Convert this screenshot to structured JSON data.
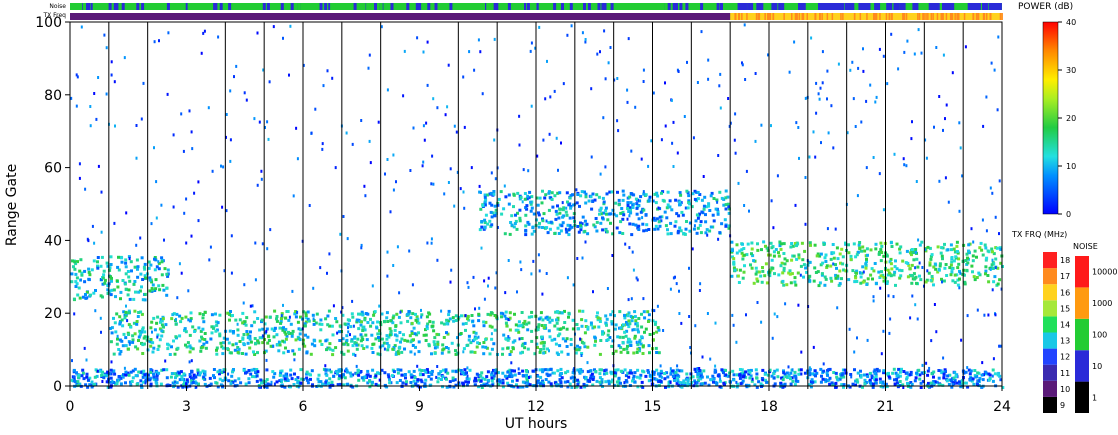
{
  "chart_data": {
    "type": "heatmap",
    "ylabel": "Range Gate",
    "xlabel": "UT hours",
    "xlim": [
      0,
      24
    ],
    "ylim": [
      0,
      100
    ],
    "x_ticks": [
      0,
      3,
      6,
      9,
      12,
      15,
      18,
      21,
      24
    ],
    "y_ticks": [
      0,
      20,
      40,
      60,
      80,
      100
    ],
    "scan_boundaries_ut": [
      1,
      2,
      4,
      5,
      6,
      7,
      8,
      10,
      11,
      12,
      13,
      14,
      15,
      16,
      17,
      18,
      19,
      20,
      21,
      22,
      23,
      24
    ],
    "header_bars": {
      "noise_label": "Noise",
      "txfreq_label": "TX Freq",
      "txfreq_switch_ut": 17.0
    },
    "power_colorbar": {
      "label": "POWER (dB)",
      "ticks": [
        0,
        10,
        20,
        30,
        40
      ],
      "range": [
        0,
        40
      ]
    },
    "txfreq_colorbar": {
      "label": "TX FRQ (MHz)",
      "levels": [
        9,
        10,
        11,
        12,
        13,
        14,
        15,
        16,
        17,
        18
      ],
      "colors": [
        "#000000",
        "#5a1a78",
        "#3a2ab0",
        "#2244ff",
        "#19c8e6",
        "#1fe05a",
        "#a6e83a",
        "#ffd21e",
        "#ff8a1e",
        "#ff2020"
      ]
    },
    "noise_colorbar": {
      "label": "NOISE",
      "levels": [
        1,
        10,
        100,
        1000,
        10000
      ],
      "colors": [
        "#000000",
        "#2a2ad8",
        "#22cc33",
        "#ff9a10",
        "#ff1a1a"
      ]
    },
    "echo_bands": [
      {
        "name": "near-range band",
        "x_start": 0.0,
        "x_end": 24.0,
        "range_gate": 2,
        "power_db": 8
      },
      {
        "name": "lower band",
        "x_start": 1.0,
        "x_end": 15.2,
        "range_gate": 15,
        "power_db": 14
      },
      {
        "name": "morning band",
        "x_start": 0.0,
        "x_end": 2.5,
        "range_gate": 30,
        "power_db": 12
      },
      {
        "name": "afternoon arc",
        "x_start": 10.5,
        "x_end": 17.0,
        "range_gate": 48,
        "power_db": 10
      },
      {
        "name": "evening band",
        "x_start": 17.0,
        "x_end": 24.0,
        "range_gate": 34,
        "power_db": 16
      }
    ]
  }
}
